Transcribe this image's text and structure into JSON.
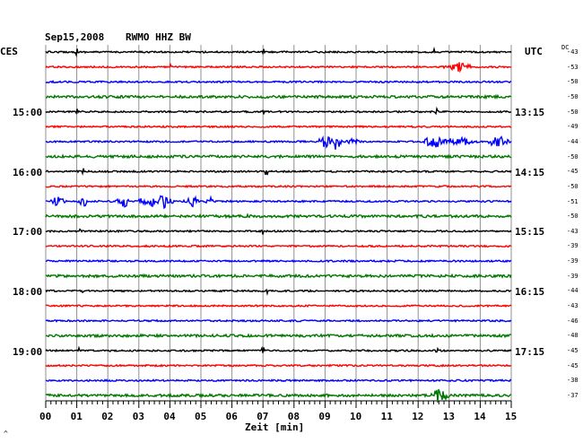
{
  "header": {
    "date": "Sep15,2008",
    "station": "RWMO HHZ BW",
    "left_tz": "CES",
    "right_tz": "UTC",
    "dc_label": "DC"
  },
  "time_labels": {
    "left": [
      "15:00",
      "16:00",
      "17:00",
      "18:00",
      "19:00"
    ],
    "right": [
      "13:15",
      "14:15",
      "15:15",
      "16:15",
      "17:15"
    ]
  },
  "dc_values": [
    "-43",
    "-53",
    "-50",
    "-50",
    "-50",
    "-49",
    "-44",
    "-50",
    "-45",
    "-50",
    "-51",
    "-50",
    "-43",
    "-39",
    "-39",
    "-39",
    "-44",
    "-43",
    "-46",
    "-48",
    "-45",
    "-45",
    "-38",
    "-37"
  ],
  "x_axis": {
    "ticks": [
      "00",
      "01",
      "02",
      "03",
      "04",
      "05",
      "06",
      "07",
      "08",
      "09",
      "10",
      "11",
      "12",
      "13",
      "14",
      "15"
    ],
    "label": "Zeit [min]"
  },
  "corner_mark": "^",
  "colors": {
    "trace_cycle": [
      "#000000",
      "#ff0000",
      "#0000ff",
      "#007700"
    ],
    "grid": "#909090"
  }
}
